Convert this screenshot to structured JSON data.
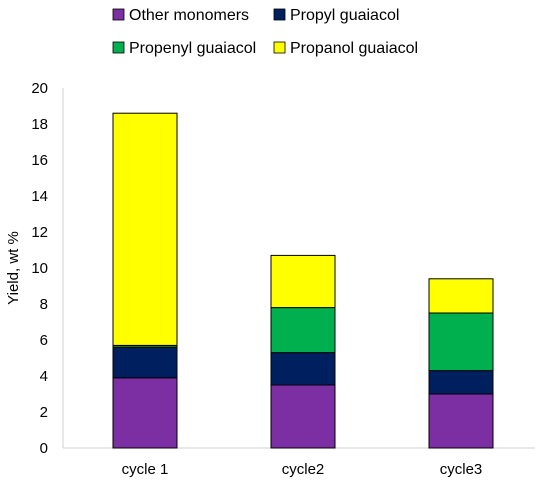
{
  "chart_data": {
    "type": "bar",
    "stacked": true,
    "categories": [
      "cycle 1",
      "cycle2",
      "cycle3"
    ],
    "series": [
      {
        "name": "Other monomers",
        "color": "#7c2ea3",
        "values": [
          3.9,
          3.5,
          3.0
        ]
      },
      {
        "name": "Propyl guaiacol",
        "color": "#001f5f",
        "values": [
          1.7,
          1.8,
          1.3
        ]
      },
      {
        "name": "Propenyl guaiacol",
        "color": "#00b04f",
        "values": [
          0.1,
          2.5,
          3.2
        ]
      },
      {
        "name": "Propanol guaiacol",
        "color": "#ffff00",
        "values": [
          12.9,
          2.9,
          1.9
        ]
      }
    ],
    "ylabel": "Yield, wt %",
    "xlabel": "",
    "ylim": [
      0,
      20
    ],
    "yticks": [
      0,
      2,
      4,
      6,
      8,
      10,
      12,
      14,
      16,
      18,
      20
    ],
    "grid": false,
    "legend_position": "top"
  }
}
